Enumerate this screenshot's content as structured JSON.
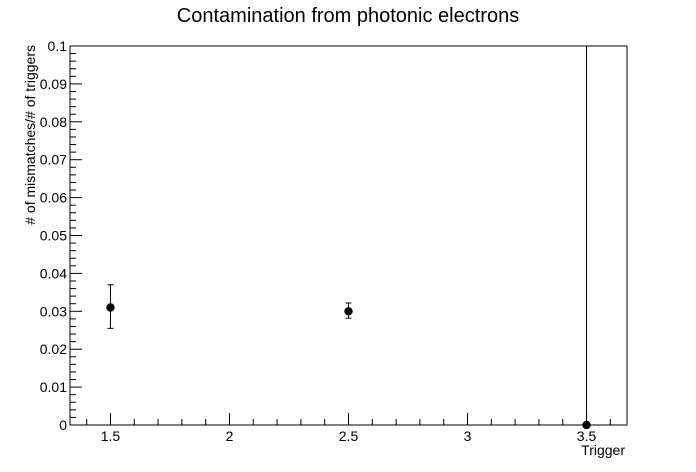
{
  "chart_data": {
    "type": "scatter",
    "title": "Contamination from photonic electrons",
    "xlabel": "Trigger",
    "ylabel": "# of mismatches/# of triggers",
    "xlim": [
      1.33,
      3.67
    ],
    "ylim": [
      0,
      0.1
    ],
    "x_ticks": [
      1.5,
      2,
      2.5,
      3,
      3.5
    ],
    "x_tick_labels": [
      "1.5",
      "2",
      "2.5",
      "3",
      "3.5"
    ],
    "y_ticks": [
      0,
      0.01,
      0.02,
      0.03,
      0.04,
      0.05,
      0.06,
      0.07,
      0.08,
      0.09,
      0.1
    ],
    "y_tick_labels": [
      "0",
      "0.01",
      "0.02",
      "0.03",
      "0.04",
      "0.05",
      "0.06",
      "0.07",
      "0.08",
      "0.09",
      "0.1"
    ],
    "grid": false,
    "legend": "none",
    "marker_color": "#000000",
    "points": [
      {
        "x": 1.5,
        "y": 0.031,
        "yerr_low": 0.0055,
        "yerr_high": 0.006
      },
      {
        "x": 2.5,
        "y": 0.03,
        "yerr_low": 0.0018,
        "yerr_high": 0.0022
      },
      {
        "x": 3.5,
        "y": 0.0,
        "yerr_low": 0.0,
        "yerr_high": 0.1
      }
    ]
  }
}
